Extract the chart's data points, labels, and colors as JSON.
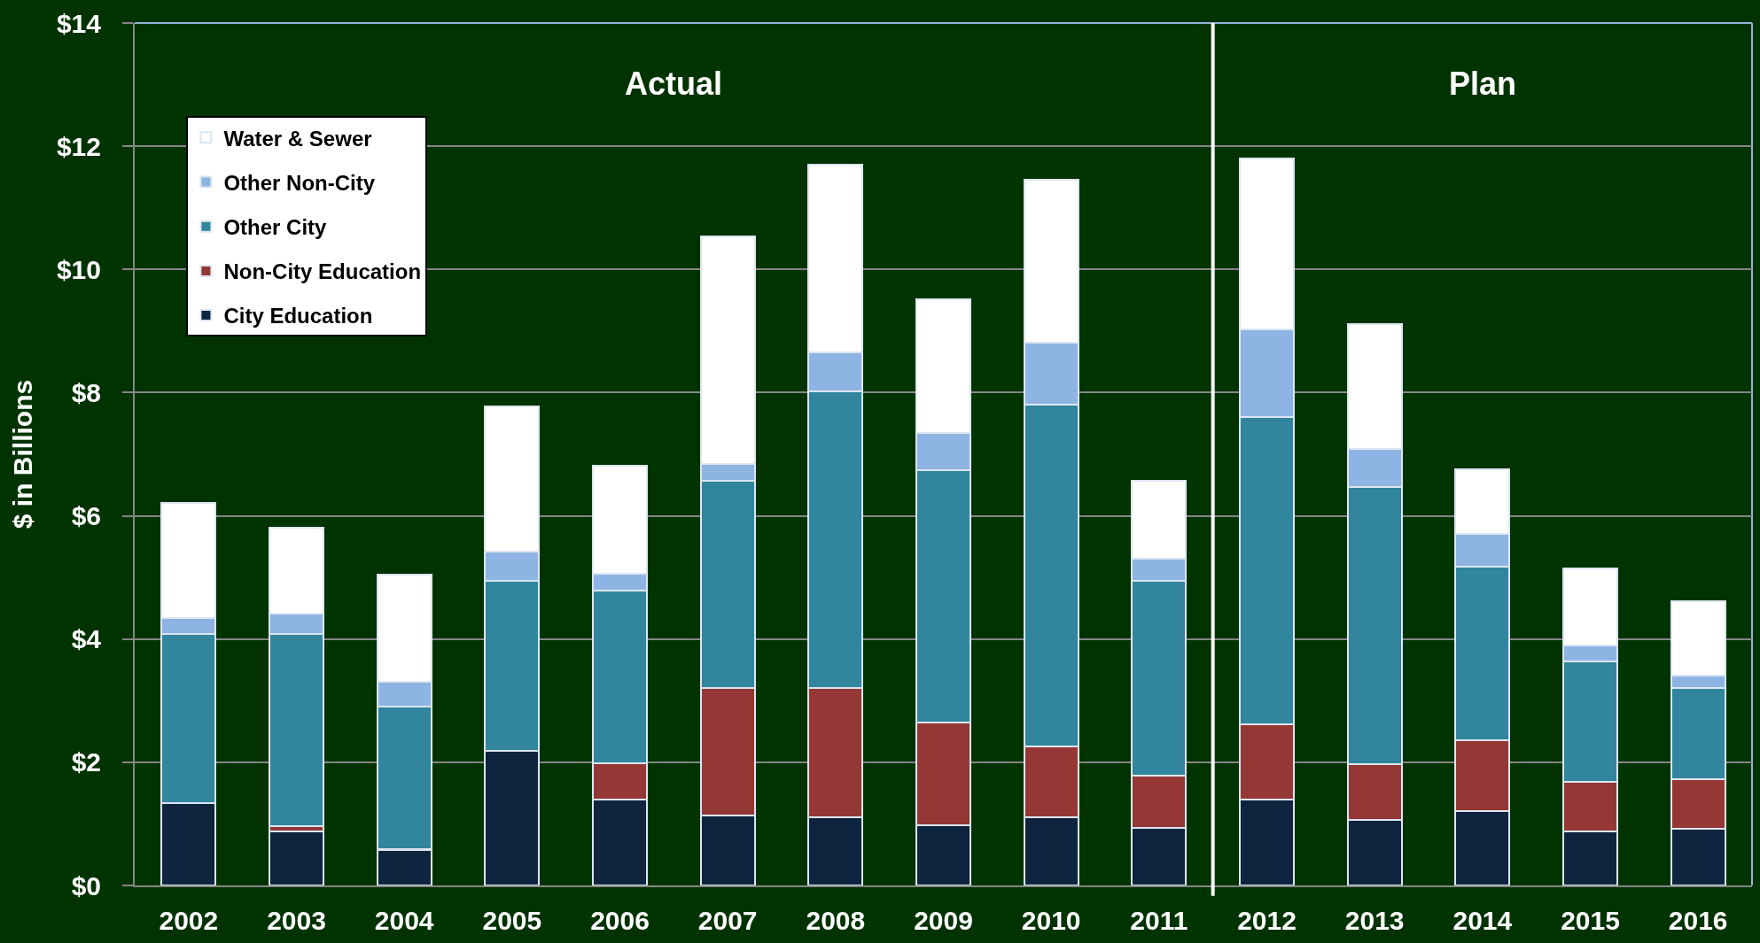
{
  "chart_data": {
    "type": "bar",
    "stacked": true,
    "ylabel": "$ in Billions",
    "x": [
      2002,
      2003,
      2004,
      2005,
      2006,
      2007,
      2008,
      2009,
      2010,
      2011,
      2012,
      2013,
      2014,
      2015,
      2016
    ],
    "xlim": [
      2001.5,
      2016.5
    ],
    "xticks": [
      2002,
      2003,
      2004,
      2005,
      2006,
      2007,
      2008,
      2009,
      2010,
      2011,
      2012,
      2013,
      2014,
      2015,
      2016
    ],
    "ylim": [
      0,
      14
    ],
    "yticks": [
      {
        "value": 0,
        "label": "$0"
      },
      {
        "value": 2,
        "label": "$2"
      },
      {
        "value": 4,
        "label": "$4"
      },
      {
        "value": 6,
        "label": "$6"
      },
      {
        "value": 8,
        "label": "$8"
      },
      {
        "value": 10,
        "label": "$10"
      },
      {
        "value": 12,
        "label": "$12"
      },
      {
        "value": 14,
        "label": "$14"
      }
    ],
    "grid": "y",
    "legend": "top left",
    "series": [
      {
        "name": "City Education",
        "color": "#0f243e",
        "values": [
          1.33,
          0.88,
          0.57,
          2.19,
          1.4,
          1.13,
          1.11,
          0.98,
          1.11,
          0.94,
          1.4,
          1.07,
          1.21,
          0.88,
          0.92
        ]
      },
      {
        "name": "Non-City Education",
        "color": "#953735",
        "values": [
          null,
          0.08,
          0.02,
          null,
          0.58,
          2.08,
          2.09,
          1.67,
          1.14,
          0.84,
          1.22,
          0.9,
          1.15,
          0.8,
          0.81
        ]
      },
      {
        "name": "Other City",
        "color": "#31859c",
        "values": [
          2.75,
          3.12,
          2.32,
          2.76,
          2.8,
          3.36,
          4.82,
          4.09,
          5.56,
          3.17,
          4.98,
          4.5,
          2.82,
          1.96,
          1.48
        ]
      },
      {
        "name": "Other Non-City",
        "color": "#8eb4e3",
        "values": [
          0.26,
          0.33,
          0.4,
          0.47,
          0.28,
          0.27,
          0.63,
          0.61,
          1.0,
          0.36,
          1.43,
          0.62,
          0.52,
          0.26,
          0.2
        ]
      },
      {
        "name": "Water & Sewer",
        "color": "#ffffff",
        "values": [
          1.87,
          1.4,
          1.73,
          2.35,
          1.75,
          3.7,
          3.05,
          2.17,
          2.64,
          1.26,
          2.77,
          2.03,
          1.05,
          1.25,
          1.21
        ]
      }
    ],
    "ref_lines": [
      {
        "axis": "x",
        "value": 2011.5,
        "color": "#ffffff"
      }
    ],
    "annotations": [
      "Actual",
      "Plan"
    ]
  }
}
